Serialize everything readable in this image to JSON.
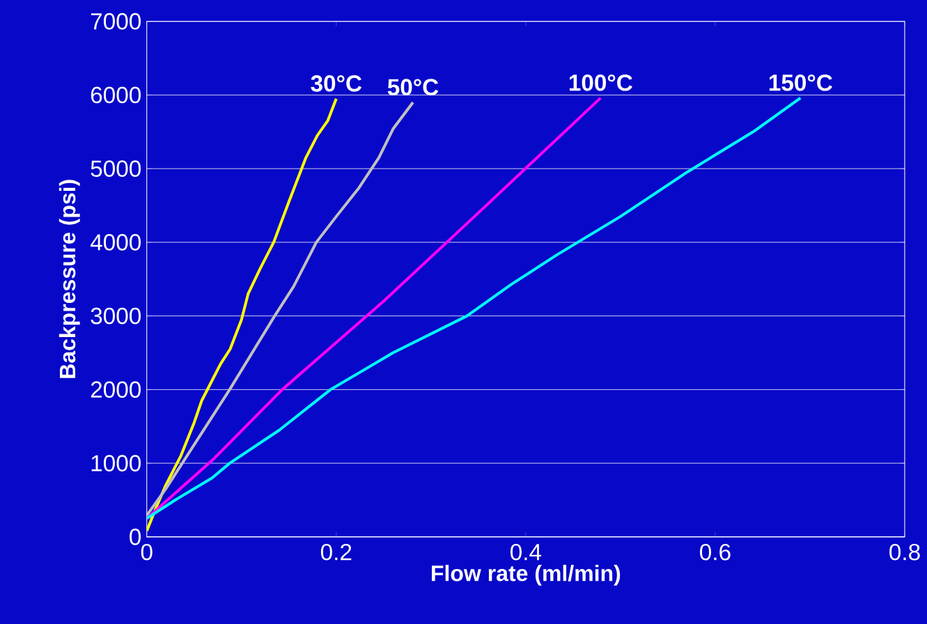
{
  "chart_data": {
    "type": "line",
    "xlabel": "Flow rate (ml/min)",
    "ylabel": "Backpressure (psi)",
    "xlim": [
      0,
      0.8
    ],
    "ylim": [
      0,
      7000
    ],
    "xticks": [
      0,
      0.2,
      0.4,
      0.6,
      0.8
    ],
    "yticks": [
      0,
      1000,
      2000,
      3000,
      4000,
      5000,
      6000,
      7000
    ],
    "grid": "y",
    "legend": false,
    "marker": "none",
    "line_style": "solid",
    "series": [
      {
        "name": "30°C",
        "color": "#ffff00",
        "x": [
          0,
          0.01,
          0.02,
          0.036,
          0.05,
          0.058,
          0.07,
          0.078,
          0.088,
          0.1,
          0.107,
          0.12,
          0.134,
          0.15,
          0.168,
          0.18,
          0.191,
          0.2
        ],
        "values": [
          80,
          400,
          700,
          1100,
          1550,
          1850,
          2150,
          2350,
          2550,
          2950,
          3300,
          3650,
          4000,
          4550,
          5150,
          5450,
          5650,
          5950
        ]
      },
      {
        "name": "50°C",
        "color": "#c0c0c0",
        "x": [
          0,
          0.02,
          0.05,
          0.0875,
          0.135,
          0.155,
          0.179,
          0.2,
          0.224,
          0.245,
          0.26,
          0.281
        ],
        "values": [
          290,
          650,
          1250,
          2000,
          3000,
          3400,
          4000,
          4350,
          4740,
          5150,
          5540,
          5900
        ]
      },
      {
        "name": "100°C",
        "color": "#ff00ff",
        "x": [
          0,
          0.07,
          0.143,
          0.25,
          0.35,
          0.479
        ],
        "values": [
          250,
          1050,
          2000,
          3200,
          4400,
          5960
        ]
      },
      {
        "name": "150°C",
        "color": "#00ffff",
        "x": [
          0,
          0.03,
          0.069,
          0.0875,
          0.14,
          0.194,
          0.26,
          0.338,
          0.385,
          0.433,
          0.5,
          0.57,
          0.64,
          0.69
        ],
        "values": [
          250,
          500,
          800,
          1000,
          1450,
          2000,
          2500,
          3000,
          3430,
          3830,
          4350,
          4950,
          5500,
          5960
        ]
      }
    ]
  }
}
